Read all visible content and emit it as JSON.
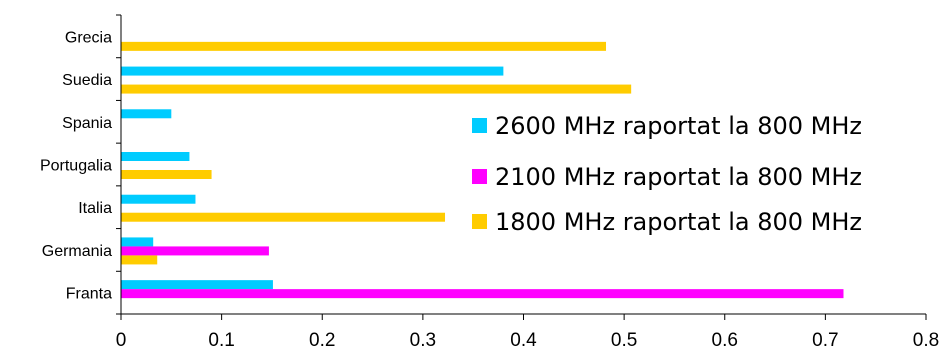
{
  "chart_data": {
    "type": "bar",
    "orientation": "horizontal",
    "title": "",
    "xlabel": "",
    "ylabel": "",
    "xlim": [
      0,
      0.8
    ],
    "x_ticks": [
      "0",
      "0.1",
      "0.2",
      "0.3",
      "0.4",
      "0.5",
      "0.6",
      "0.7",
      "0.8"
    ],
    "grid": false,
    "legend_position": "right",
    "categories": [
      "Franta",
      "Germania",
      "Italia",
      "Portugalia",
      "Spania",
      "Suedia",
      "Grecia"
    ],
    "series": [
      {
        "name": "2600 MHz raportat la 800 MHz",
        "color": "#00ccff",
        "values": [
          0.151,
          0.032,
          0.074,
          0.068,
          0.05,
          0.38,
          null
        ]
      },
      {
        "name": "2100 MHz raportat la 800 MHz",
        "color": "#ff00ff",
        "values": [
          0.718,
          0.147,
          null,
          null,
          null,
          null,
          null
        ]
      },
      {
        "name": "1800 MHz raportat la 800 MHz",
        "color": "#ffcc00",
        "values": [
          null,
          0.036,
          0.322,
          0.09,
          null,
          0.507,
          0.482
        ]
      }
    ]
  }
}
